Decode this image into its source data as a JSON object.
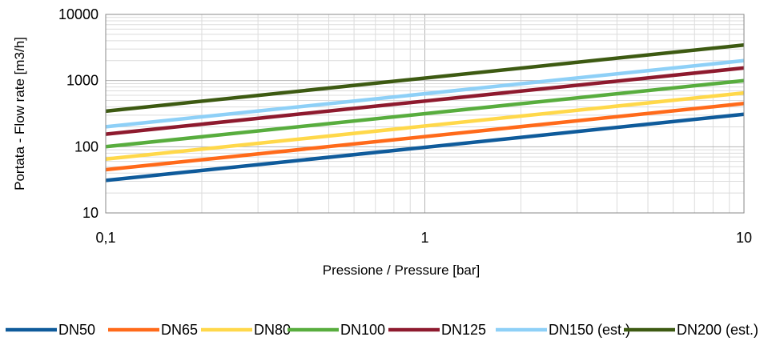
{
  "chart_data": {
    "type": "line",
    "title": "",
    "xlabel": "Pressione / Pressure [bar]",
    "ylabel": "Portata - Flow rate [m3/h]",
    "x_scale": "log",
    "y_scale": "log",
    "xlim": [
      0.1,
      10
    ],
    "ylim": [
      10,
      10000
    ],
    "x_ticks": [
      0.1,
      1,
      10
    ],
    "x_tick_labels": [
      "0,1",
      "1",
      "10"
    ],
    "y_ticks": [
      10,
      100,
      1000,
      10000
    ],
    "y_tick_labels": [
      "10",
      "100",
      "1000",
      "10000"
    ],
    "grid": true,
    "legend_position": "bottom",
    "series": [
      {
        "name": "DN50",
        "color": "#0f5b9b",
        "x": [
          0.1,
          10
        ],
        "y": [
          31,
          310
        ]
      },
      {
        "name": "DN65",
        "color": "#ff6a1a",
        "x": [
          0.1,
          10
        ],
        "y": [
          45,
          450
        ]
      },
      {
        "name": "DN80",
        "color": "#ffd84a",
        "x": [
          0.1,
          10
        ],
        "y": [
          65,
          650
        ]
      },
      {
        "name": "DN100",
        "color": "#58ad3e",
        "x": [
          0.1,
          10
        ],
        "y": [
          100,
          1000
        ]
      },
      {
        "name": "DN125",
        "color": "#8e1a2e",
        "x": [
          0.1,
          10
        ],
        "y": [
          155,
          1550
        ]
      },
      {
        "name": "DN150 (est.)",
        "color": "#8ed0f7",
        "x": [
          0.1,
          10
        ],
        "y": [
          200,
          2000
        ]
      },
      {
        "name": "DN200 (est.)",
        "color": "#3d5a12",
        "x": [
          0.1,
          10
        ],
        "y": [
          345,
          3450
        ]
      }
    ]
  }
}
